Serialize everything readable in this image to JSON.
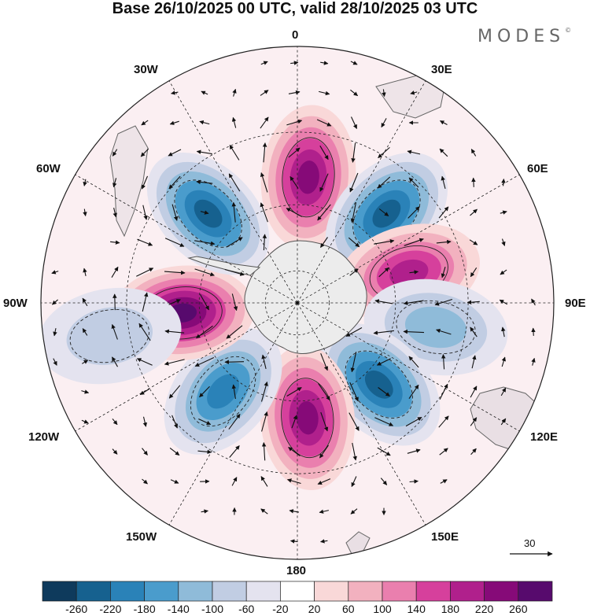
{
  "title": "Base 26/10/2025 00 UTC, valid 28/10/2025 03 UTC",
  "logo": {
    "text": "MODES",
    "mark": "©"
  },
  "longitude_labels": {
    "n0": "0",
    "e30": "30E",
    "e60": "60E",
    "e90": "90E",
    "e120": "120E",
    "e150": "150E",
    "s180": "180",
    "w150": "150W",
    "w120": "120W",
    "w90": "90W",
    "w60": "60W",
    "w30": "30W"
  },
  "reference_vector": {
    "value": "30"
  },
  "colorbar": {
    "ticks": [
      "-260",
      "-220",
      "-180",
      "-140",
      "-100",
      "-60",
      "-20",
      "20",
      "60",
      "100",
      "140",
      "180",
      "220",
      "260"
    ],
    "colors": [
      "#0e3a5c",
      "#16618f",
      "#2a82b8",
      "#4a9ccc",
      "#8fbbd9",
      "#c1cde3",
      "#e4e3ef",
      "#ffffff",
      "#f9d8d8",
      "#f2b1bf",
      "#ea7fae",
      "#d6409c",
      "#b0208c",
      "#860a78",
      "#570a6d"
    ]
  },
  "map": {
    "projection": "south-polar-stereographic",
    "field": "geopotential height anomaly with wind vectors",
    "anomaly_centers": [
      {
        "lon": 5,
        "lat": -52,
        "value": 200,
        "sign": "positive"
      },
      {
        "lon": 45,
        "lat": -52,
        "value": -200,
        "sign": "negative"
      },
      {
        "lon": 75,
        "lat": -55,
        "value": 180,
        "sign": "positive"
      },
      {
        "lon": 100,
        "lat": -48,
        "value": -100,
        "sign": "negative"
      },
      {
        "lon": 135,
        "lat": -55,
        "value": -220,
        "sign": "negative"
      },
      {
        "lon": 175,
        "lat": -55,
        "value": 200,
        "sign": "positive"
      },
      {
        "lon": -140,
        "lat": -55,
        "value": -180,
        "sign": "negative"
      },
      {
        "lon": -95,
        "lat": -55,
        "value": 240,
        "sign": "positive"
      },
      {
        "lon": -45,
        "lat": -52,
        "value": -200,
        "sign": "negative"
      },
      {
        "lon": -100,
        "lat": -35,
        "value": -40,
        "sign": "negative"
      }
    ]
  }
}
